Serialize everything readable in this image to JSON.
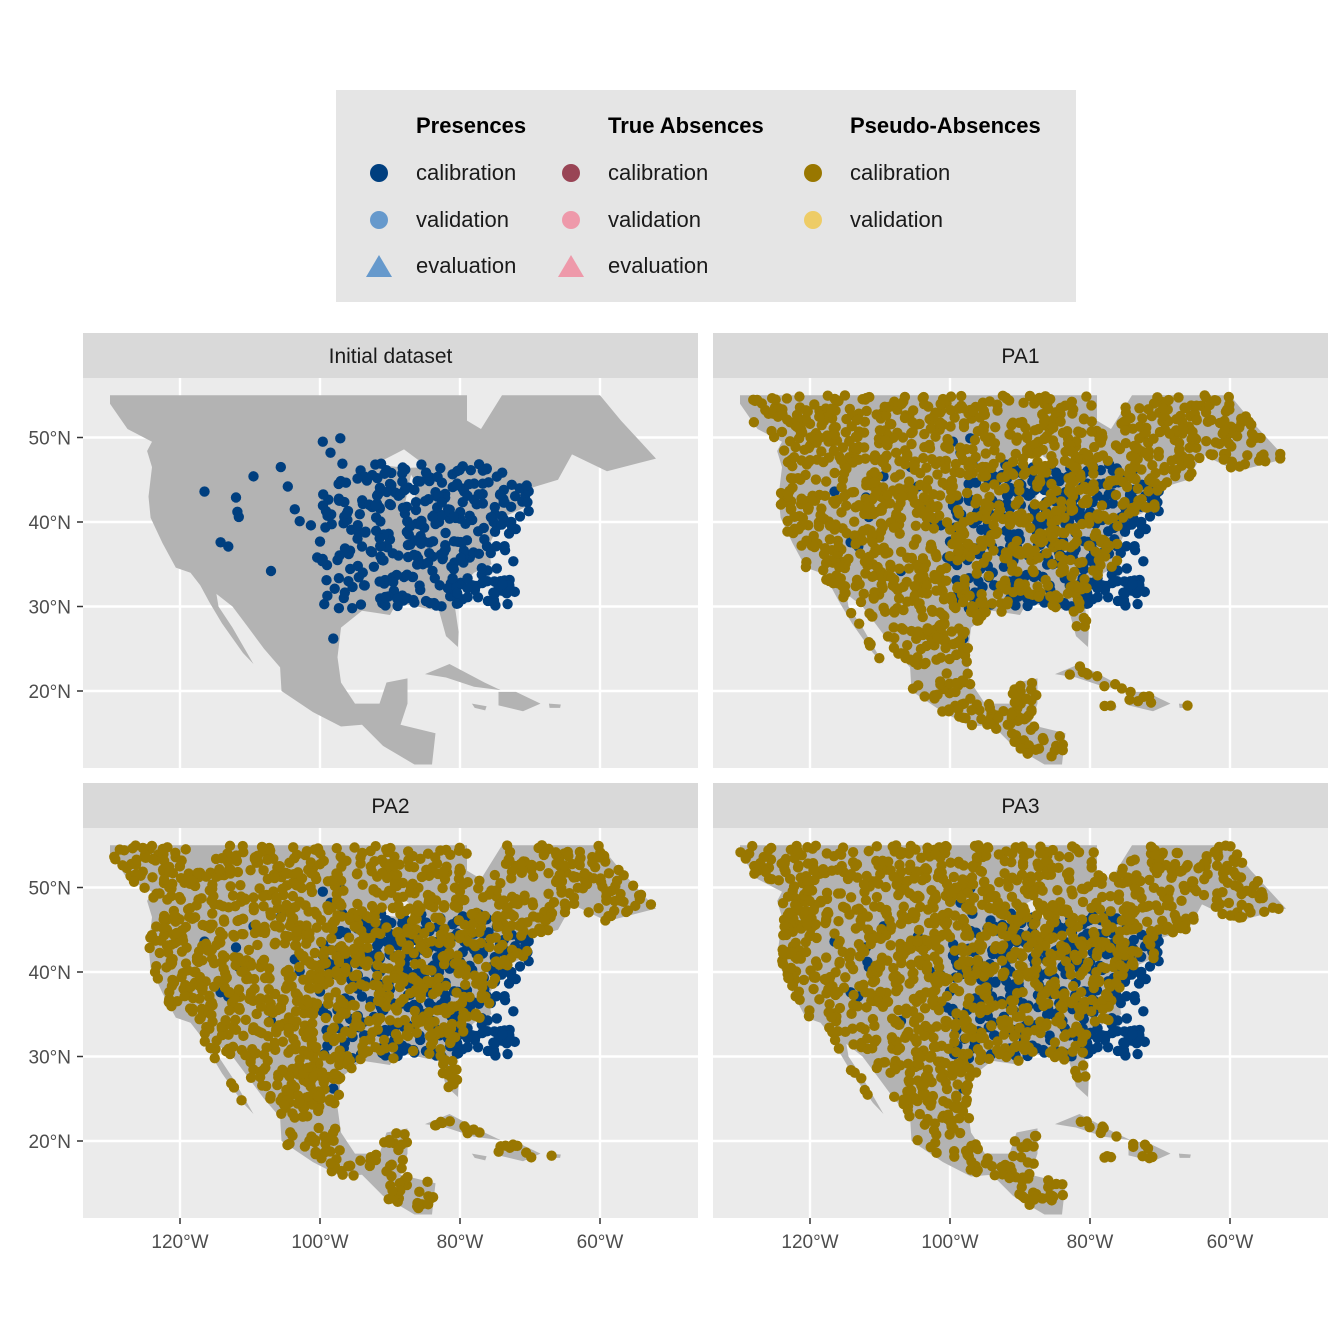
{
  "colors": {
    "panel_bg": "#ebebeb",
    "strip_bg": "#d9d9d9",
    "grid": "#ffffff",
    "land": "#b3b3b3",
    "presence_calibration": "#003f7f",
    "presence_validation": "#6699cc",
    "presence_evaluation": "#6699cc",
    "true_absence_calibration": "#994455",
    "true_absence_validation": "#ee99aa",
    "true_absence_evaluation": "#ee99aa",
    "pseudo_absence_calibration": "#997700",
    "pseudo_absence_validation": "#eecc66"
  },
  "legend": {
    "groups": [
      {
        "title": "Presences",
        "items": [
          {
            "label": "calibration",
            "shape": "circle",
            "color": "#003f7f"
          },
          {
            "label": "validation",
            "shape": "circle",
            "color": "#6699cc"
          },
          {
            "label": "evaluation",
            "shape": "triangle",
            "color": "#6699cc"
          }
        ]
      },
      {
        "title": "True Absences",
        "items": [
          {
            "label": "calibration",
            "shape": "circle",
            "color": "#994455"
          },
          {
            "label": "validation",
            "shape": "circle",
            "color": "#ee99aa"
          },
          {
            "label": "evaluation",
            "shape": "triangle",
            "color": "#ee99aa"
          }
        ]
      },
      {
        "title": "Pseudo-Absences",
        "items": [
          {
            "label": "calibration",
            "shape": "circle",
            "color": "#997700"
          },
          {
            "label": "validation",
            "shape": "circle",
            "color": "#eecc66"
          }
        ]
      }
    ]
  },
  "chart_data": {
    "type": "scatter",
    "coordinate_system": "longitude/latitude map of North America",
    "xlim": [
      -134,
      -46
    ],
    "ylim": [
      11,
      56
    ],
    "x_ticks": [
      -120,
      -100,
      -80,
      -60
    ],
    "x_tick_labels": [
      "120°W",
      "100°W",
      "80°W",
      "60°W"
    ],
    "y_ticks": [
      20,
      30,
      40,
      50
    ],
    "y_tick_labels": [
      "20°N",
      "30°N",
      "40°N",
      "50°N"
    ],
    "grid": true,
    "legend_position": "top",
    "facets": [
      {
        "title": "Initial dataset",
        "presences": "presence_calibration",
        "pseudo_absences": false
      },
      {
        "title": "PA1",
        "presences": "presence_calibration",
        "pseudo_absences": true
      },
      {
        "title": "PA2",
        "presences": "presence_calibration",
        "pseudo_absences": true
      },
      {
        "title": "PA3",
        "presences": "presence_calibration",
        "pseudo_absences": true
      }
    ],
    "presences_sample": [
      [
        -116.5,
        43.6
      ],
      [
        -114.2,
        37.6
      ],
      [
        -113.1,
        37.1
      ],
      [
        -112.0,
        42.9
      ],
      [
        -111.8,
        41.2
      ],
      [
        -111.6,
        40.6
      ],
      [
        -107.0,
        34.2
      ],
      [
        -105.6,
        46.5
      ],
      [
        -109.5,
        45.4
      ],
      [
        -104.6,
        44.2
      ],
      [
        -103.6,
        41.5
      ],
      [
        -102.9,
        40.1
      ],
      [
        -101.3,
        39.6
      ],
      [
        -100.4,
        35.8
      ],
      [
        -99.0,
        34.9
      ],
      [
        -97.9,
        32.1
      ],
      [
        -97.3,
        29.8
      ],
      [
        -96.6,
        31.0
      ],
      [
        -95.7,
        36.6
      ],
      [
        -94.6,
        38.9
      ],
      [
        -93.3,
        44.9
      ],
      [
        -92.9,
        42.0
      ],
      [
        -91.5,
        41.7
      ],
      [
        -90.2,
        38.6
      ],
      [
        -89.6,
        36.3
      ],
      [
        -88.8,
        43.1
      ],
      [
        -87.6,
        41.8
      ],
      [
        -86.2,
        39.8
      ],
      [
        -85.7,
        44.8
      ],
      [
        -84.5,
        42.7
      ],
      [
        -83.0,
        40.0
      ],
      [
        -82.5,
        35.6
      ],
      [
        -81.7,
        41.5
      ],
      [
        -80.0,
        40.4
      ],
      [
        -79.4,
        43.6
      ],
      [
        -78.6,
        35.8
      ],
      [
        -77.4,
        38.9
      ],
      [
        -76.6,
        39.3
      ],
      [
        -75.2,
        40.0
      ],
      [
        -74.0,
        40.7
      ],
      [
        -73.8,
        42.7
      ],
      [
        -72.7,
        41.8
      ],
      [
        -71.1,
        42.4
      ],
      [
        -70.3,
        43.7
      ],
      [
        -72.6,
        44.4
      ],
      [
        -88.1,
        30.7
      ],
      [
        -84.3,
        30.4
      ],
      [
        -81.4,
        31.2
      ],
      [
        -98.5,
        48.2
      ],
      [
        -96.8,
        46.9
      ],
      [
        -99.6,
        49.5
      ],
      [
        -97.1,
        49.9
      ],
      [
        -94.2,
        46.1
      ],
      [
        -92.1,
        46.8
      ],
      [
        -90.0,
        44.5
      ],
      [
        -89.4,
        33.5
      ],
      [
        -86.8,
        33.5
      ],
      [
        -85.3,
        35.0
      ],
      [
        -83.9,
        35.9
      ],
      [
        -80.8,
        35.2
      ],
      [
        -79.9,
        32.8
      ],
      [
        -82.9,
        32.5
      ],
      [
        -91.1,
        30.4
      ],
      [
        -93.7,
        32.5
      ],
      [
        -95.4,
        29.8
      ],
      [
        -98.1,
        26.2
      ],
      [
        -92.3,
        34.7
      ],
      [
        -94.0,
        37.1
      ],
      [
        -96.0,
        41.3
      ],
      [
        -98.4,
        40.9
      ],
      [
        -97.5,
        35.5
      ],
      [
        -95.9,
        36.2
      ]
    ]
  },
  "facet_titles": [
    "Initial dataset",
    "PA1",
    "PA2",
    "PA3"
  ]
}
